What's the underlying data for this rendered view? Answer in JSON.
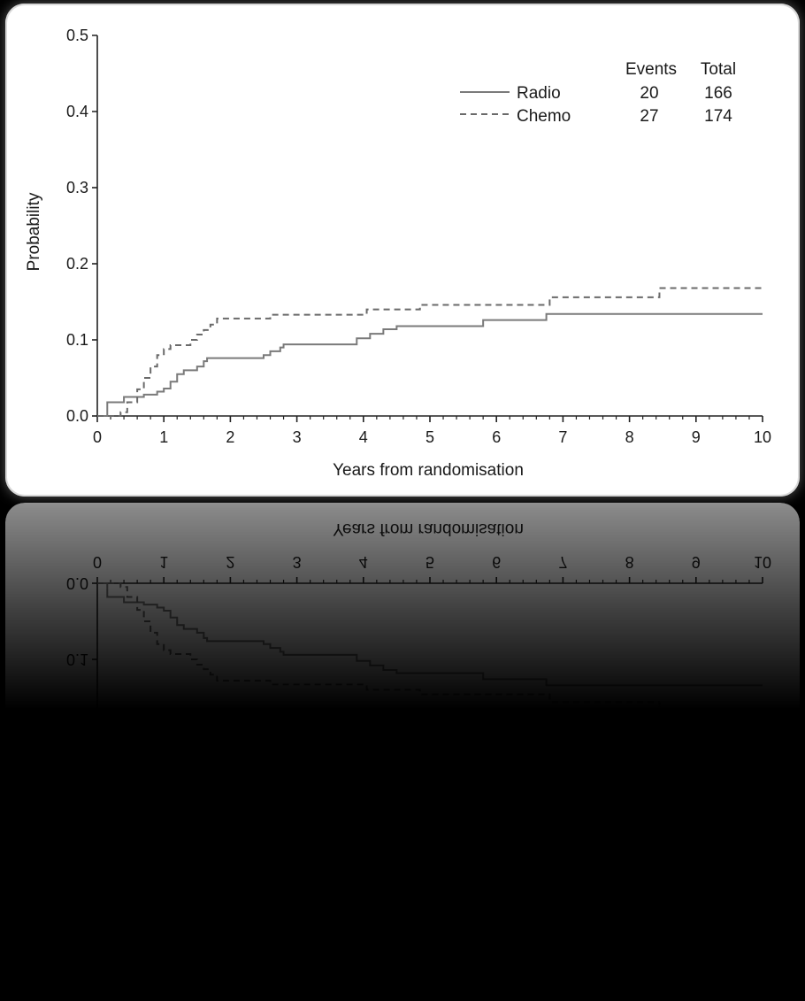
{
  "chart_data": {
    "type": "line",
    "xlabel": "Years from randomisation",
    "ylabel": "Probability",
    "xlim": [
      0,
      10
    ],
    "ylim": [
      0,
      0.5
    ],
    "x_ticks": [
      "0",
      "1",
      "2",
      "3",
      "4",
      "5",
      "6",
      "7",
      "8",
      "9",
      "10"
    ],
    "y_ticks": [
      "0.0",
      "0.1",
      "0.2",
      "0.3",
      "0.4",
      "0.5"
    ],
    "step": true,
    "legend": {
      "placement": "top-right",
      "col_events": "Events",
      "col_total": "Total"
    },
    "series": [
      {
        "name": "Radio",
        "events": "20",
        "total": "166",
        "style": "solid",
        "color": "#7a7a7a",
        "points": [
          [
            0,
            0
          ],
          [
            0.15,
            0.018
          ],
          [
            0.4,
            0.025
          ],
          [
            0.7,
            0.028
          ],
          [
            0.9,
            0.032
          ],
          [
            1.0,
            0.036
          ],
          [
            1.1,
            0.045
          ],
          [
            1.2,
            0.055
          ],
          [
            1.3,
            0.06
          ],
          [
            1.5,
            0.065
          ],
          [
            1.6,
            0.072
          ],
          [
            1.65,
            0.076
          ],
          [
            2.1,
            0.076
          ],
          [
            2.5,
            0.08
          ],
          [
            2.6,
            0.085
          ],
          [
            2.75,
            0.09
          ],
          [
            2.8,
            0.094
          ],
          [
            3.8,
            0.094
          ],
          [
            3.9,
            0.102
          ],
          [
            4.1,
            0.108
          ],
          [
            4.3,
            0.114
          ],
          [
            4.5,
            0.118
          ],
          [
            5.75,
            0.118
          ],
          [
            5.8,
            0.126
          ],
          [
            6.7,
            0.126
          ],
          [
            6.75,
            0.134
          ],
          [
            10.0,
            0.134
          ]
        ]
      },
      {
        "name": "Chemo",
        "events": "27",
        "total": "174",
        "style": "dashed",
        "color": "#6a6a6a",
        "points": [
          [
            0,
            0
          ],
          [
            0.35,
            0.005
          ],
          [
            0.45,
            0.018
          ],
          [
            0.6,
            0.035
          ],
          [
            0.7,
            0.05
          ],
          [
            0.8,
            0.065
          ],
          [
            0.9,
            0.08
          ],
          [
            1.0,
            0.088
          ],
          [
            1.1,
            0.093
          ],
          [
            1.4,
            0.1
          ],
          [
            1.5,
            0.107
          ],
          [
            1.6,
            0.113
          ],
          [
            1.7,
            0.12
          ],
          [
            1.8,
            0.128
          ],
          [
            2.5,
            0.128
          ],
          [
            2.6,
            0.133
          ],
          [
            4.0,
            0.133
          ],
          [
            4.05,
            0.14
          ],
          [
            4.8,
            0.14
          ],
          [
            4.85,
            0.146
          ],
          [
            6.75,
            0.146
          ],
          [
            6.8,
            0.156
          ],
          [
            8.4,
            0.156
          ],
          [
            8.45,
            0.168
          ],
          [
            10.0,
            0.168
          ]
        ]
      }
    ]
  }
}
